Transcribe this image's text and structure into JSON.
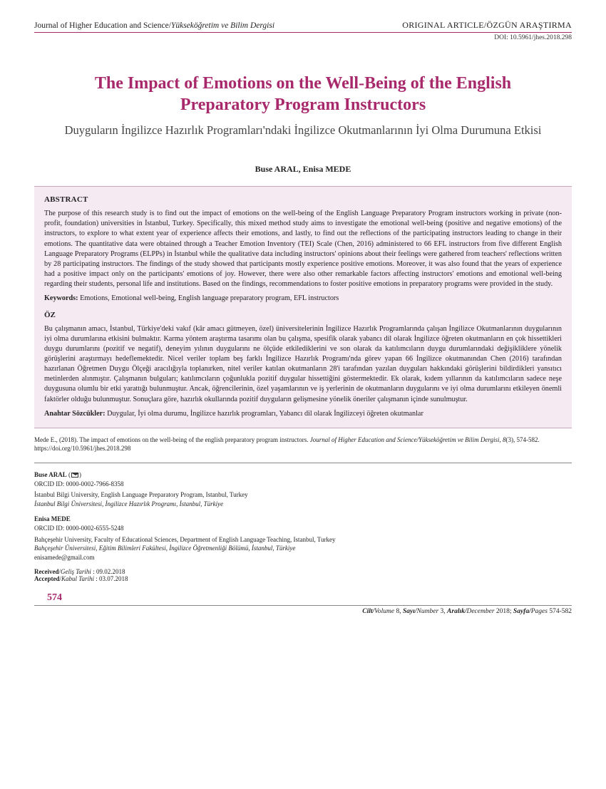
{
  "header": {
    "journal_name": "Journal of Higher Education and Science/",
    "journal_name_italic": "Yükseköğretim ve Bilim Dergisi",
    "article_type": "ORIGINAL ARTICLE/ÖZGÜN ARAŞTIRMA",
    "doi": "DOI: 10.5961/jhes.2018.298"
  },
  "titles": {
    "en": "The Impact of Emotions on the Well-Being of the English Preparatory Program Instructors",
    "tr": "Duyguların İngilizce Hazırlık Programları'ndaki İngilizce Okutmanlarının İyi Olma Durumuna Etkisi"
  },
  "authors_line": "Buse ARAL, Enisa MEDE",
  "abstract": {
    "heading": "ABSTRACT",
    "body": "The purpose of this research study is to find out the impact of emotions on the well-being of the English Language Preparatory Program instructors working in private (non-profit, foundation) universities in İstanbul, Turkey. Specifically, this mixed method study aims to investigate the emotional well-being (positive and negative emotions) of the instructors, to explore to what extent year of experience affects their emotions, and lastly, to find out the reflections of the participating instructors leading to change in their emotions. The quantitative data were obtained through a Teacher Emotion Inventory (TEI) Scale (Chen, 2016) administered to 66 EFL instructors from five different English Language Preparatory Programs (ELPPs) in İstanbul while the qualitative data including instructors' opinions about their feelings were gathered from teachers' reflections written by 28 participating instructors. The findings of the study showed that participants mostly experience positive emotions. Moreover, it was also found that the years of experience had a positive impact only on the participants' emotions of joy. However, there were also other remarkable factors affecting instructors' emotions and emotional well-being regarding their students, personal life and institutions. Based on the findings, recommendations to foster positive emotions in preparatory programs were provided in the study.",
    "keywords_label": "Keywords:",
    "keywords": " Emotions, Emotional well-being, English language preparatory program, EFL instructors"
  },
  "oz": {
    "heading": "ÖZ",
    "body": "Bu çalışmanın amacı, İstanbul, Türkiye'deki vakıf (kâr amacı gütmeyen, özel) üniversitelerinin İngilizce Hazırlık Programlarında çalışan İngilizce Okutmanlarının duygularının iyi olma durumlarına etkisini bulmaktır. Karma yöntem araştırma tasarımı olan bu çalışma, spesifik olarak yabancı dil olarak İngilizce öğreten okutmanların en çok hissettikleri duygu durumlarını (pozitif ve negatif), deneyim yılının duygularını ne ölçüde etkilediklerini ve son olarak da katılımcıların duygu durumlarındaki değişikliklere yönelik görüşlerini araştırmayı hedeflemektedir. Nicel veriler toplam beş farklı İngilizce Hazırlık Programı'nda görev yapan 66 İngilizce okutmanından Chen (2016) tarafından hazırlanan Öğretmen Duygu Ölçeği aracılığıyla toplanırken, nitel veriler katılan okutmanların 28'i tarafından yazılan duyguları hakkındaki görüşlerini bildirdikleri yansıtıcı metinlerden alınmıştır. Çalışmanın bulguları; katılımcıların çoğunlukla pozitif duygular hissettiğini göstermektedir. Ek olarak, kıdem yıllarının da katılımcıların sadece neşe duygusuna olumlu bir etki yarattığı bulunmuştur. Ancak, öğrencilerinin, özel yaşamlarının ve iş yerlerinin de okutmanların duygularını ve iyi olma durumlarını etkileyen önemli faktörler olduğu bulunmuştur. Sonuçlara göre, hazırlık okullarında pozitif duyguların gelişmesine yönelik öneriler çalışmanın içinde sunulmuştur.",
    "keywords_label": "Anahtar Sözcükler:",
    "keywords": " Duygular, İyi olma durumu, İngilizce hazırlık programları, Yabancı dil olarak İngilizceyi öğreten okutmanlar"
  },
  "citation": {
    "text_pre": "Mede E., (2018). The impact of emotions on the well-being of the english preparatory program instructors. ",
    "journal_italic": "Journal of Higher Education and Science/Yükseköğretim ve Bilim Dergisi, 8",
    "text_post": "(3), 574-582. https://doi.org/10.5961/jhes.2018.298"
  },
  "author_details": [
    {
      "name": "Buse ARAL",
      "corresponding": true,
      "orcid": "ORCID ID: 0000-0002-7966-8358",
      "affil_en": "İstanbul Bilgi University, English Language Preparatory Program, Istanbul, Turkey",
      "affil_tr": "İstanbul Bilgi Üniversitesi, İngilizce Hazırlık Programı, İstanbul, Türkiye",
      "email": ""
    },
    {
      "name": "Enisa MEDE",
      "corresponding": false,
      "orcid": "ORCID ID: 0000-0002-6555-5248",
      "affil_en": "Bahçeşehir University, Faculty of Educational Sciences, Department of English Language Teaching, Istanbul, Turkey",
      "affil_tr": "Bahçeşehir Üniversitesi, Eğitim Bilimleri Fakültesi, İngilizce Öğretmenliği Bölümü, İstanbul, Türkiye",
      "email": "enisamede@gmail.com"
    }
  ],
  "dates": {
    "received_label_en": "Received",
    "received_label_tr": "Geliş Tarihi",
    "received_value": ": 09.02.2018",
    "accepted_label_en": "Accepted",
    "accepted_label_tr": "Kabul Tarihi",
    "accepted_value": ": 03.07.2018"
  },
  "page_number": "574",
  "footer": {
    "cilt_label": "Cilt/",
    "volume_label": "Volume",
    "volume_value": " 8, ",
    "sayi_label": "Sayı/",
    "number_label": "Number",
    "number_value": " 3, ",
    "aralik_label": "Aralık/",
    "december_label": "December",
    "year_value": " 2018; ",
    "sayfa_label": "Sayfa/",
    "pages_label": "Pages",
    "pages_value": " 574-582"
  },
  "colors": {
    "accent": "#a8296b",
    "abstract_bg": "#f5eaf1",
    "text": "#222222",
    "rule": "#888888"
  }
}
